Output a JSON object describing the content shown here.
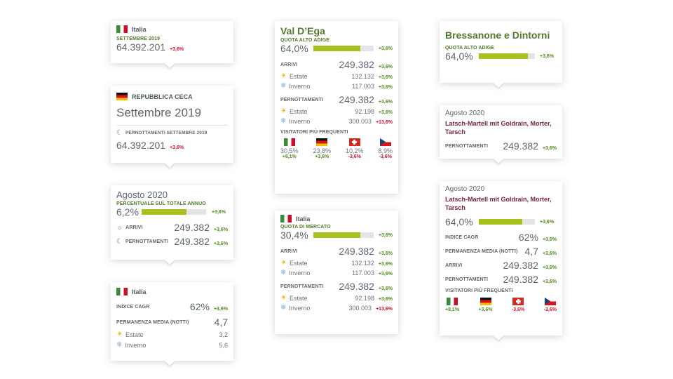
{
  "c1": {
    "country": "Italia",
    "label": "SETTEMBRE 2019",
    "value": "64.392.201",
    "change": "+3,6%"
  },
  "c2": {
    "country": "REPUBBLICA CECA",
    "heading": "Settembre 2019",
    "label": "PERNOTTAMENTI SETTEMBRE 2019",
    "value": "64.392.201",
    "change": "+3,6%"
  },
  "c3": {
    "heading": "Agosto 2020",
    "label": "PERCENTUALE SUL TOTALE ANNUO",
    "value": "6,2%",
    "change": "+3,6%",
    "bar_fraction": 0.7,
    "rows": [
      {
        "label": "ARRIVI",
        "value": "249.382",
        "change": "+3,6%"
      },
      {
        "label": "PERNOTTAMENTI",
        "value": "249.382",
        "change": "+3,6%"
      }
    ]
  },
  "c4": {
    "country": "Italia",
    "cagr_label": "INDICE CAGR",
    "cagr": "62%",
    "cagr_change": "+3,6%",
    "stay_label": "PERMANENZA MEDIA (NOTTI)",
    "stay": "4,7",
    "estate_label": "Estate",
    "estate": "3,2",
    "inverno_label": "Inverno",
    "inverno": "5,6"
  },
  "c5": {
    "title": "Val D’Ega",
    "label": "QUOTA ALTO ADIGE",
    "value": "64,0%",
    "change": "+3,6%",
    "bar_fraction": 0.78,
    "arrivi_label": "ARRIVI",
    "arrivi": "249.382",
    "arrivi_change": "+3,6%",
    "a_estate_label": "Estate",
    "a_estate": "132.132",
    "a_estate_change": "+3,6%",
    "a_inverno_label": "Inverno",
    "a_inverno": "117.003",
    "a_inverno_change": "+3,6%",
    "pern_label": "PERNOTTAMENTI",
    "pern": "249.382",
    "pern_change": "+3,6%",
    "p_estate_label": "Estate",
    "p_estate": "92.198",
    "p_estate_change": "+3,6%",
    "p_inverno_label": "Inverno",
    "p_inverno": "300.003",
    "p_inverno_change": "+13,6%",
    "vis_label": "VISITATORI PIÙ FREQUENTI",
    "visitors": [
      {
        "pct": "30,5%",
        "change": "+8,1%"
      },
      {
        "pct": "23,8%",
        "change": "+3,6%"
      },
      {
        "pct": "10,2%",
        "change": "-3,6%"
      },
      {
        "pct": "8,9%",
        "change": "-3,6%"
      }
    ]
  },
  "c6": {
    "country": "Italia",
    "label": "QUOTA DI MERCATO",
    "value": "30,4%",
    "change": "+3,6%",
    "bar_fraction": 0.78,
    "arrivi_label": "ARRIVI",
    "arrivi": "249.382",
    "arrivi_change": "+3,6%",
    "a_estate_label": "Estate",
    "a_estate": "132.132",
    "a_estate_change": "+3,6%",
    "a_inverno_label": "Inverno",
    "a_inverno": "117.003",
    "a_inverno_change": "+3,6%",
    "pern_label": "PERNOTTAMENTI",
    "pern": "249.382",
    "pern_change": "+3,6%",
    "p_estate_label": "Estate",
    "p_estate": "92.198",
    "p_estate_change": "+3,6%",
    "p_inverno_label": "Inverno",
    "p_inverno": "300.003",
    "p_inverno_change": "+13,6%"
  },
  "c7": {
    "title": "Bressanone e Dintorni",
    "label": "QUOTA ALTO ADIGE",
    "value": "64,0%",
    "change": "+3,6%",
    "bar_fraction": 0.88
  },
  "c8": {
    "heading": "Agosto 2020",
    "name": "Latsch-Martell mit Goldrain, Morter, Tarsch",
    "label": "PERNOTTAMENTI",
    "value": "249.382",
    "change": "+3,6%"
  },
  "c9": {
    "heading": "Agosto 2020",
    "name": "Latsch-Martell mit Goldrain, Morter, Tarsch",
    "value": "64,0%",
    "change": "+3,6%",
    "bar_fraction": 0.78,
    "cagr_label": "INDICE CAGR",
    "cagr": "62%",
    "cagr_change": "+3,6%",
    "stay_label": "PERMANENZA MEDIA (NOTTI)",
    "stay": "4,7",
    "stay_change": "+3,6%",
    "arrivi_label": "ARRIVI",
    "arrivi": "249.382",
    "arrivi_change": "+3,6%",
    "pern_label": "PERNOTTAMENTI",
    "pern": "249.382",
    "pern_change": "+3,6%",
    "vis_label": "VISITATORI PIÙ FREQUENTI",
    "visitors": [
      {
        "change": "+8,1%"
      },
      {
        "change": "+3,6%"
      },
      {
        "change": "-3,6%"
      },
      {
        "change": "-3,6%"
      }
    ]
  },
  "colors": {
    "accent_bar": "#a8c020",
    "positive": "#4f8a1f",
    "negative": "#c8102e",
    "title_green": "#4f7a2a",
    "title_maroon": "#7a1f3d"
  },
  "icons": {
    "flag_it": "italy-flag-icon",
    "flag_de": "germany-flag-icon",
    "flag_ch": "switzerland-flag-icon",
    "flag_cz": "czech-flag-icon",
    "sun": "sun-icon",
    "snow": "snowflake-icon",
    "moon": "moon-icon"
  }
}
